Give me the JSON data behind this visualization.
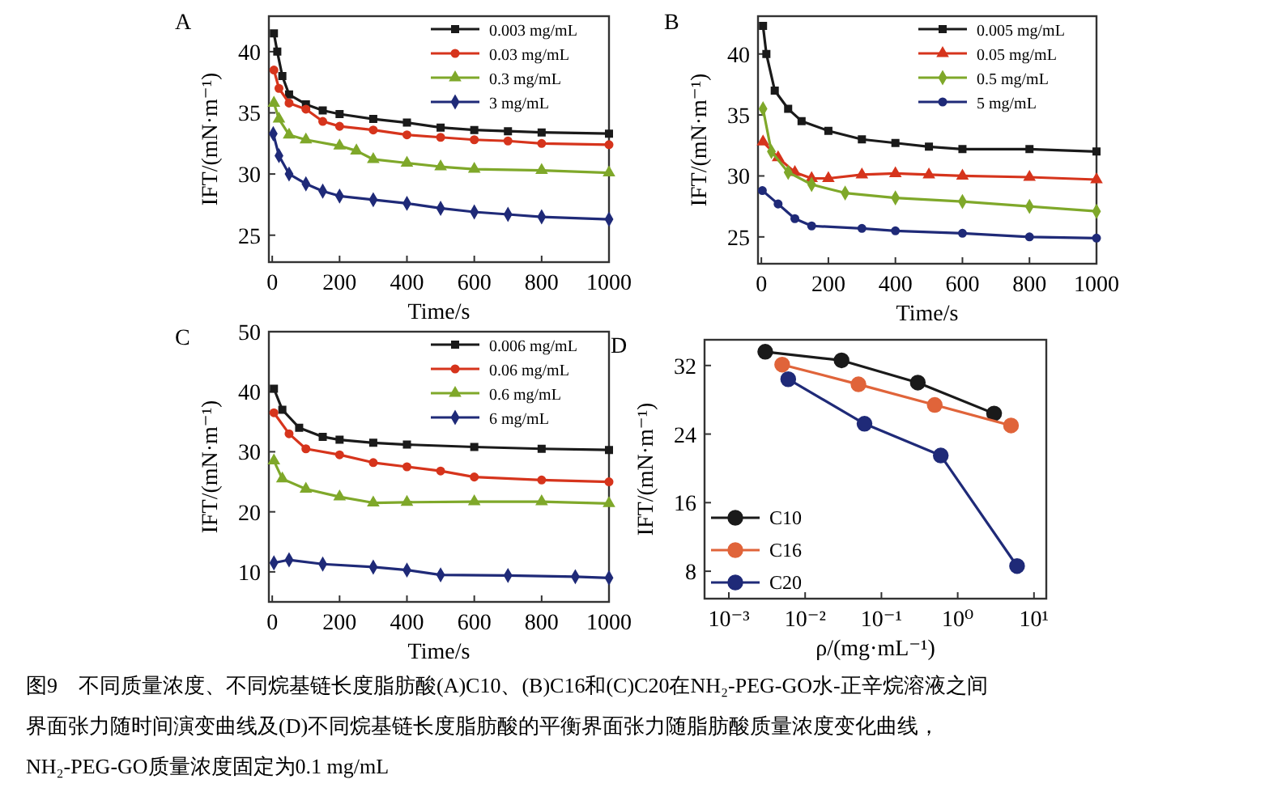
{
  "chart_data": [
    {
      "type": "line",
      "title": "A",
      "xlabel": "Time/s",
      "ylabel": "IFT/(mN·m⁻¹)",
      "xlim": [
        -10,
        1000
      ],
      "xticks": [
        0,
        200,
        400,
        600,
        800,
        1000
      ],
      "ylim": [
        22.8,
        42.9
      ],
      "yticks": [
        25,
        30,
        35,
        40
      ],
      "legend": "top right",
      "series": [
        {
          "name": "0.003 mg/mL",
          "color": "#1a1a1a",
          "marker": "square",
          "x": [
            5,
            15,
            30,
            50,
            100,
            150,
            200,
            300,
            400,
            500,
            600,
            700,
            800,
            1000
          ],
          "values": [
            41.5,
            40,
            38,
            36.5,
            35.7,
            35.2,
            34.9,
            34.5,
            34.2,
            33.8,
            33.6,
            33.5,
            33.4,
            33.3
          ]
        },
        {
          "name": "0.03 mg/mL",
          "color": "#d6341c",
          "marker": "circle",
          "x": [
            5,
            20,
            50,
            100,
            150,
            200,
            300,
            400,
            500,
            600,
            700,
            800,
            1000
          ],
          "values": [
            38.5,
            37,
            35.8,
            35.3,
            34.3,
            33.9,
            33.6,
            33.2,
            33.0,
            32.8,
            32.7,
            32.5,
            32.4
          ]
        },
        {
          "name": "0.3 mg/mL",
          "color": "#7fa82a",
          "marker": "triangle",
          "x": [
            5,
            20,
            50,
            100,
            200,
            250,
            300,
            400,
            500,
            600,
            800,
            1000
          ],
          "values": [
            35.8,
            34.5,
            33.2,
            32.8,
            32.3,
            31.9,
            31.2,
            30.9,
            30.6,
            30.4,
            30.3,
            30.1
          ]
        },
        {
          "name": "3 mg/mL",
          "color": "#1f2a78",
          "marker": "diamond",
          "x": [
            3,
            20,
            50,
            100,
            150,
            200,
            300,
            400,
            500,
            600,
            700,
            800,
            1000
          ],
          "values": [
            33.3,
            31.5,
            30,
            29.2,
            28.6,
            28.2,
            27.9,
            27.6,
            27.2,
            26.9,
            26.7,
            26.5,
            26.3
          ]
        }
      ]
    },
    {
      "type": "line",
      "title": "B",
      "xlabel": "Time/s",
      "ylabel": "IFT/(mN·m⁻¹)",
      "xlim": [
        -10,
        1000
      ],
      "xticks": [
        0,
        200,
        400,
        600,
        800,
        1000
      ],
      "ylim": [
        22.8,
        43.1
      ],
      "yticks": [
        25,
        30,
        35,
        40
      ],
      "legend": "top right",
      "series": [
        {
          "name": "0.005 mg/mL",
          "color": "#1a1a1a",
          "marker": "square",
          "x": [
            5,
            15,
            40,
            80,
            120,
            200,
            300,
            400,
            500,
            600,
            800,
            1000
          ],
          "values": [
            42.3,
            40,
            37,
            35.5,
            34.5,
            33.7,
            33.0,
            32.7,
            32.4,
            32.2,
            32.2,
            32.0
          ]
        },
        {
          "name": "0.05 mg/mL",
          "color": "#d6341c",
          "marker": "triangle",
          "x": [
            5,
            50,
            100,
            150,
            200,
            300,
            400,
            500,
            600,
            800,
            1000
          ],
          "values": [
            32.8,
            31.5,
            30.3,
            29.8,
            29.8,
            30.1,
            30.2,
            30.1,
            30.0,
            29.9,
            29.7
          ]
        },
        {
          "name": "0.5 mg/mL",
          "color": "#7fa82a",
          "marker": "diamond",
          "x": [
            5,
            30,
            80,
            150,
            250,
            400,
            600,
            800,
            1000
          ],
          "values": [
            35.5,
            32,
            30.3,
            29.3,
            28.6,
            28.2,
            27.9,
            27.5,
            27.1
          ]
        },
        {
          "name": "5 mg/mL",
          "color": "#1f2a78",
          "marker": "circle",
          "x": [
            3,
            50,
            100,
            150,
            300,
            400,
            600,
            800,
            1000
          ],
          "values": [
            28.8,
            27.7,
            26.5,
            25.9,
            25.7,
            25.5,
            25.3,
            25.0,
            24.9
          ]
        }
      ]
    },
    {
      "type": "line",
      "title": "C",
      "xlabel": "Time/s",
      "ylabel": "IFT/(mN·m⁻¹)",
      "xlim": [
        -10,
        1000
      ],
      "xticks": [
        0,
        200,
        400,
        600,
        800,
        1000
      ],
      "ylim": [
        5,
        50
      ],
      "yticks": [
        10,
        20,
        30,
        40,
        50
      ],
      "legend": "top right",
      "series": [
        {
          "name": "0.006 mg/mL",
          "color": "#1a1a1a",
          "marker": "square",
          "x": [
            5,
            30,
            80,
            150,
            200,
            300,
            400,
            600,
            800,
            1000
          ],
          "values": [
            40.5,
            37,
            34,
            32.5,
            32,
            31.5,
            31.2,
            30.8,
            30.5,
            30.3
          ]
        },
        {
          "name": "0.06 mg/mL",
          "color": "#d6341c",
          "marker": "circle",
          "x": [
            5,
            50,
            100,
            200,
            300,
            400,
            500,
            600,
            800,
            1000
          ],
          "values": [
            36.5,
            33,
            30.5,
            29.5,
            28.2,
            27.5,
            26.8,
            25.8,
            25.3,
            25.0
          ]
        },
        {
          "name": "0.6 mg/mL",
          "color": "#7fa82a",
          "marker": "triangle",
          "x": [
            5,
            30,
            100,
            200,
            300,
            400,
            600,
            800,
            1000
          ],
          "values": [
            28.5,
            25.5,
            23.8,
            22.5,
            21.5,
            21.6,
            21.7,
            21.7,
            21.4
          ]
        },
        {
          "name": "6 mg/mL",
          "color": "#1f2a78",
          "marker": "diamond",
          "x": [
            5,
            50,
            150,
            300,
            400,
            500,
            700,
            900,
            1000
          ],
          "values": [
            11.5,
            12,
            11.3,
            10.8,
            10.3,
            9.5,
            9.4,
            9.2,
            9.0
          ]
        }
      ]
    },
    {
      "type": "line",
      "title": "D",
      "xlabel": "ρ/(mg·mL⁻¹)",
      "ylabel": "IFT/(mN·m⁻¹)",
      "log": "x",
      "marker": "circle",
      "xlim": [
        0.00048,
        14.5
      ],
      "xticks": [
        {
          "value": 0.001,
          "label": "10⁻³"
        },
        {
          "value": 0.01,
          "label": "10⁻²"
        },
        {
          "value": 0.1,
          "label": "10⁻¹"
        },
        {
          "value": 1,
          "label": "10⁰"
        },
        {
          "value": 10,
          "label": "10¹"
        }
      ],
      "ylim": [
        4.8,
        35
      ],
      "yticks": [
        8,
        16,
        24,
        32
      ],
      "legend": "bottom left",
      "annotations": [
        "图9　不同质量浓度、不同烷基链长度脂肪酸(A)C10、(B)C16和(C)C20在NH₂-PEG-GO水-正辛烷溶液之间",
        "界面张力随时间演变曲线及(D)不同烷基链长度脂肪酸的平衡界面张力随脂肪酸质量浓度变化曲线，",
        "NH₂-PEG-GO质量浓度固定为0.1 mg/mL"
      ],
      "series": [
        {
          "name": "C10",
          "color": "#1a1a1a",
          "x": [
            0.003,
            0.03,
            0.3,
            3
          ],
          "values": [
            33.6,
            32.6,
            30.0,
            26.4
          ]
        },
        {
          "name": "C16",
          "color": "#e0643a",
          "x": [
            0.005,
            0.05,
            0.5,
            5
          ],
          "values": [
            32.1,
            29.8,
            27.4,
            25.0
          ]
        },
        {
          "name": "C20",
          "color": "#1f2a78",
          "x": [
            0.006,
            0.06,
            0.6,
            6
          ],
          "values": [
            30.4,
            25.2,
            21.5,
            8.6
          ]
        }
      ]
    }
  ]
}
